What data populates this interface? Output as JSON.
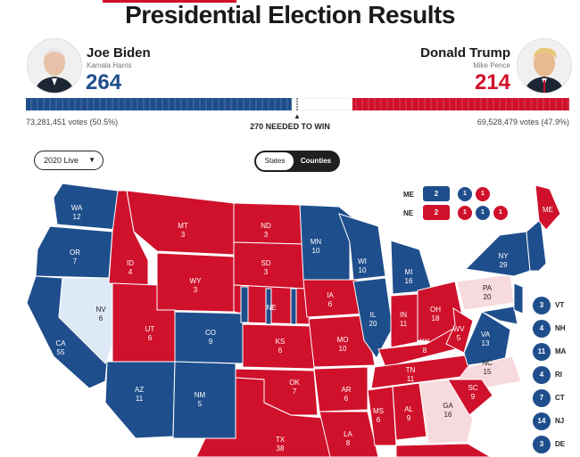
{
  "title": "Presidential Election Results",
  "colors": {
    "dem": "#1f4e8c",
    "rep": "#d0112b",
    "dem_light": "#dde9f6",
    "rep_light": "#f7dadd"
  },
  "biden": {
    "name": "Joe Biden",
    "vp": "Kamala Harris",
    "electoral": "264",
    "votes": "73,281,451 votes (50.5%)"
  },
  "trump": {
    "name": "Donald Trump",
    "vp": "Mike Pence",
    "electoral": "214",
    "votes": "69,528,479 votes (47.9%)"
  },
  "needed_label": "270 NEEDED TO WIN",
  "controls": {
    "dropdown": "2020 Live",
    "toggle_states": "States",
    "toggle_counties": "Counties"
  },
  "split_states": [
    {
      "state": "ME",
      "total": "2",
      "districts": [
        "1",
        "1"
      ]
    },
    {
      "state": "NE",
      "total": "2",
      "districts": [
        "1",
        "1",
        "1"
      ]
    }
  ],
  "small_states": [
    {
      "ev": "3",
      "abbr": "VT"
    },
    {
      "ev": "4",
      "abbr": "NH"
    },
    {
      "ev": "11",
      "abbr": "MA"
    },
    {
      "ev": "4",
      "abbr": "RI"
    },
    {
      "ev": "7",
      "abbr": "CT"
    },
    {
      "ev": "14",
      "abbr": "NJ"
    },
    {
      "ev": "3",
      "abbr": "DE"
    }
  ],
  "map_labels": [
    {
      "abbr": "WA",
      "ev": "12"
    },
    {
      "abbr": "OR",
      "ev": "7"
    },
    {
      "abbr": "CA",
      "ev": "55"
    },
    {
      "abbr": "NV",
      "ev": "6"
    },
    {
      "abbr": "ID",
      "ev": "4"
    },
    {
      "abbr": "MT",
      "ev": "3"
    },
    {
      "abbr": "WY",
      "ev": "3"
    },
    {
      "abbr": "UT",
      "ev": "6"
    },
    {
      "abbr": "AZ",
      "ev": "11"
    },
    {
      "abbr": "CO",
      "ev": "9"
    },
    {
      "abbr": "NM",
      "ev": "5"
    },
    {
      "abbr": "ND",
      "ev": "3"
    },
    {
      "abbr": "SD",
      "ev": "3"
    },
    {
      "abbr": "NE",
      "ev": ""
    },
    {
      "abbr": "KS",
      "ev": "6"
    },
    {
      "abbr": "OK",
      "ev": "7"
    },
    {
      "abbr": "TX",
      "ev": "38"
    },
    {
      "abbr": "MN",
      "ev": "10"
    },
    {
      "abbr": "IA",
      "ev": "6"
    },
    {
      "abbr": "MO",
      "ev": "10"
    },
    {
      "abbr": "AR",
      "ev": "6"
    },
    {
      "abbr": "LA",
      "ev": "8"
    },
    {
      "abbr": "WI",
      "ev": "10"
    },
    {
      "abbr": "IL",
      "ev": "20"
    },
    {
      "abbr": "MI",
      "ev": "16"
    },
    {
      "abbr": "IN",
      "ev": "11"
    },
    {
      "abbr": "OH",
      "ev": "18"
    },
    {
      "abbr": "KY",
      "ev": "8"
    },
    {
      "abbr": "TN",
      "ev": "11"
    },
    {
      "abbr": "MS",
      "ev": "6"
    },
    {
      "abbr": "AL",
      "ev": "9"
    },
    {
      "abbr": "GA",
      "ev": "16"
    },
    {
      "abbr": "PA",
      "ev": "20"
    },
    {
      "abbr": "WV",
      "ev": "5"
    },
    {
      "abbr": "VA",
      "ev": "13"
    },
    {
      "abbr": "NC",
      "ev": "15"
    },
    {
      "abbr": "SC",
      "ev": "9"
    },
    {
      "abbr": "NY",
      "ev": "29"
    },
    {
      "abbr": "ME",
      "ev": ""
    }
  ]
}
